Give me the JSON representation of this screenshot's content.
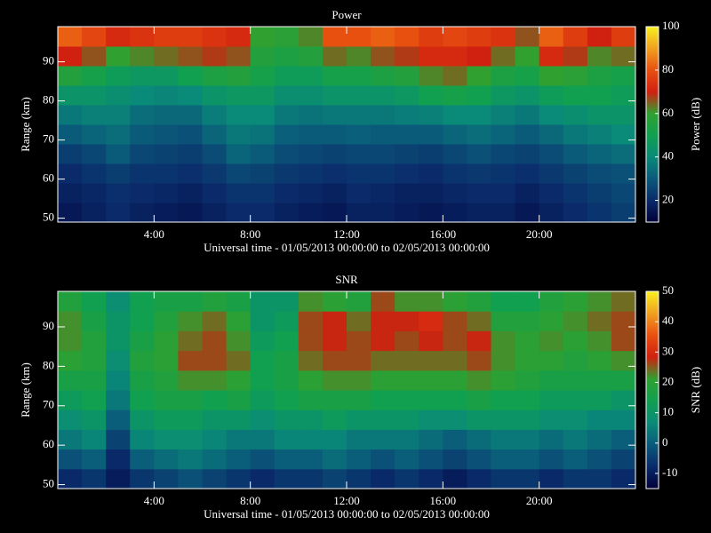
{
  "chart_data": [
    {
      "type": "heatmap",
      "title": "Power",
      "xlabel": "Universal time - 01/05/2013 00:00:00 to 02/05/2013 00:00:00",
      "ylabel": "Range (km)",
      "colorbar_label": "Power (dB)",
      "x": [
        0.5,
        1.5,
        2.5,
        3.5,
        4.5,
        5.5,
        6.5,
        7.5,
        8.5,
        9.5,
        10.5,
        11.5,
        12.5,
        13.5,
        14.5,
        15.5,
        16.5,
        17.5,
        18.5,
        19.5,
        20.5,
        21.5,
        22.5,
        23.5
      ],
      "y": [
        51.5,
        56.5,
        61.5,
        66.5,
        71.5,
        76.5,
        81.5,
        86.5,
        91.5,
        96.5
      ],
      "z": [
        [
          16,
          18,
          20,
          18,
          17,
          16,
          18,
          20,
          20,
          18,
          17,
          16,
          18,
          18,
          17,
          16,
          17,
          18,
          18,
          16,
          18,
          20,
          22,
          24
        ],
        [
          18,
          19,
          21,
          20,
          19,
          18,
          20,
          22,
          22,
          20,
          19,
          18,
          20,
          19,
          18,
          18,
          19,
          20,
          20,
          18,
          20,
          22,
          24,
          26
        ],
        [
          20,
          22,
          24,
          22,
          22,
          21,
          23,
          26,
          25,
          23,
          22,
          21,
          22,
          22,
          21,
          20,
          22,
          23,
          22,
          21,
          23,
          25,
          27,
          28
        ],
        [
          24,
          26,
          30,
          26,
          25,
          24,
          27,
          32,
          30,
          27,
          26,
          25,
          26,
          26,
          25,
          24,
          26,
          28,
          26,
          25,
          27,
          30,
          32,
          34
        ],
        [
          30,
          32,
          34,
          30,
          29,
          28,
          32,
          36,
          35,
          31,
          30,
          30,
          31,
          30,
          30,
          30,
          32,
          34,
          32,
          30,
          33,
          36,
          38,
          40
        ],
        [
          36,
          38,
          38,
          34,
          33,
          33,
          37,
          40,
          40,
          36,
          35,
          36,
          36,
          36,
          37,
          38,
          40,
          40,
          38,
          36,
          40,
          42,
          44,
          44
        ],
        [
          44,
          44,
          42,
          40,
          39,
          40,
          44,
          46,
          46,
          42,
          42,
          44,
          44,
          44,
          46,
          50,
          52,
          50,
          46,
          44,
          48,
          50,
          50,
          48
        ],
        [
          56,
          52,
          48,
          46,
          46,
          50,
          54,
          56,
          52,
          48,
          48,
          52,
          52,
          54,
          56,
          62,
          64,
          60,
          54,
          52,
          60,
          58,
          54,
          52
        ],
        [
          70,
          66,
          60,
          62,
          64,
          66,
          68,
          66,
          56,
          54,
          56,
          64,
          62,
          66,
          68,
          72,
          72,
          70,
          64,
          60,
          72,
          68,
          62,
          64
        ],
        [
          82,
          78,
          72,
          74,
          76,
          76,
          74,
          72,
          60,
          58,
          62,
          80,
          80,
          82,
          80,
          76,
          78,
          76,
          74,
          66,
          82,
          76,
          70,
          76
        ]
      ],
      "xlim": [
        0,
        24
      ],
      "xticks": [
        {
          "value": 4,
          "label": "4:00"
        },
        {
          "value": 8,
          "label": "8:00"
        },
        {
          "value": 12,
          "label": "12:00"
        },
        {
          "value": 16,
          "label": "16:00"
        },
        {
          "value": 20,
          "label": "20:00"
        }
      ],
      "ylim": [
        49,
        99
      ],
      "yticks": [
        50,
        60,
        70,
        80,
        90
      ],
      "clim": [
        10,
        100
      ],
      "cticks": [
        20,
        40,
        60,
        80,
        100
      ],
      "colormap": [
        "#000038",
        "#0a2a6a",
        "#0a5a7a",
        "#0a8a78",
        "#10a050",
        "#30a030",
        "#d02010",
        "#e85010",
        "#f0a020",
        "#f8f020"
      ]
    },
    {
      "type": "heatmap",
      "title": "SNR",
      "xlabel": "Universal time - 01/05/2013 00:00:00 to 02/05/2013 00:00:00",
      "ylabel": "Range (km)",
      "colorbar_label": "SNR (dB)",
      "x": [
        0.5,
        1.5,
        2.5,
        3.5,
        4.5,
        5.5,
        6.5,
        7.5,
        8.5,
        9.5,
        10.5,
        11.5,
        12.5,
        13.5,
        14.5,
        15.5,
        16.5,
        17.5,
        18.5,
        19.5,
        20.5,
        21.5,
        22.5,
        23.5
      ],
      "y": [
        51.5,
        56.5,
        61.5,
        66.5,
        71.5,
        76.5,
        81.5,
        86.5,
        91.5,
        96.5
      ],
      "z": [
        [
          -8,
          -6,
          -10,
          -6,
          -4,
          -2,
          -4,
          -6,
          -8,
          -6,
          -6,
          -4,
          -6,
          -8,
          -6,
          -8,
          -10,
          -8,
          -6,
          -6,
          -8,
          -6,
          -6,
          -8
        ],
        [
          -2,
          0,
          -8,
          0,
          2,
          4,
          2,
          0,
          -2,
          0,
          0,
          2,
          0,
          -2,
          0,
          -2,
          -4,
          -2,
          0,
          0,
          -2,
          0,
          -2,
          -4
        ],
        [
          4,
          6,
          -4,
          6,
          8,
          8,
          6,
          4,
          4,
          6,
          6,
          6,
          4,
          4,
          4,
          2,
          0,
          2,
          4,
          4,
          2,
          4,
          2,
          0
        ],
        [
          8,
          10,
          0,
          10,
          12,
          12,
          10,
          10,
          8,
          10,
          10,
          12,
          10,
          10,
          10,
          8,
          8,
          10,
          10,
          10,
          8,
          8,
          6,
          6
        ],
        [
          12,
          14,
          4,
          14,
          16,
          16,
          14,
          16,
          12,
          14,
          16,
          16,
          16,
          14,
          14,
          14,
          14,
          16,
          14,
          14,
          12,
          12,
          12,
          10
        ],
        [
          16,
          16,
          6,
          16,
          18,
          22,
          22,
          20,
          14,
          16,
          20,
          22,
          22,
          20,
          20,
          20,
          20,
          22,
          20,
          18,
          16,
          16,
          16,
          16
        ],
        [
          20,
          18,
          8,
          18,
          20,
          26,
          26,
          24,
          14,
          16,
          24,
          26,
          26,
          24,
          24,
          24,
          24,
          26,
          22,
          20,
          20,
          18,
          20,
          22
        ],
        [
          22,
          18,
          10,
          16,
          20,
          24,
          26,
          22,
          12,
          14,
          26,
          28,
          26,
          28,
          26,
          28,
          26,
          28,
          22,
          20,
          22,
          20,
          22,
          26
        ],
        [
          22,
          16,
          10,
          14,
          18,
          22,
          24,
          20,
          10,
          12,
          26,
          28,
          24,
          28,
          28,
          30,
          26,
          24,
          18,
          18,
          20,
          22,
          24,
          26
        ],
        [
          18,
          14,
          8,
          14,
          16,
          16,
          18,
          16,
          10,
          10,
          22,
          20,
          18,
          26,
          22,
          22,
          20,
          18,
          14,
          14,
          18,
          20,
          22,
          24
        ]
      ],
      "xlim": [
        0,
        24
      ],
      "xticks": [
        {
          "value": 4,
          "label": "4:00"
        },
        {
          "value": 8,
          "label": "8:00"
        },
        {
          "value": 12,
          "label": "12:00"
        },
        {
          "value": 16,
          "label": "16:00"
        },
        {
          "value": 20,
          "label": "20:00"
        }
      ],
      "ylim": [
        49,
        99
      ],
      "yticks": [
        50,
        60,
        70,
        80,
        90
      ],
      "clim": [
        -15,
        50
      ],
      "cticks": [
        -10,
        0,
        10,
        20,
        30,
        40,
        50
      ],
      "colormap": [
        "#000038",
        "#0a2a6a",
        "#0a5a7a",
        "#0a8a78",
        "#10a050",
        "#30a030",
        "#d02010",
        "#e85010",
        "#f0a020",
        "#f8f020"
      ]
    }
  ]
}
